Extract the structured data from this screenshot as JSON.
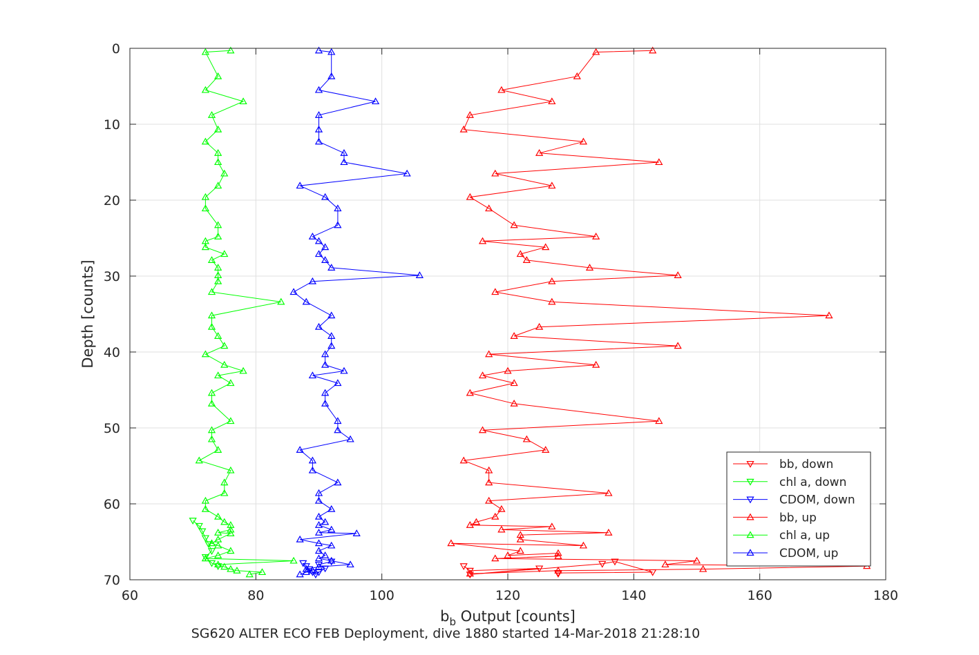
{
  "chart_data": {
    "type": "line",
    "title": "",
    "xlabel_main": "b",
    "xlabel_sub": "b",
    "xlabel_rest": " Output [counts]",
    "ylabel": "Depth [counts]",
    "footer": "SG620 ALTER ECO FEB Deployment, dive 1880 started 14-Mar-2018 21:28:10",
    "xlim": [
      60,
      180
    ],
    "ylim": [
      0,
      70
    ],
    "y_reversed": true,
    "xticks": [
      60,
      80,
      100,
      120,
      140,
      160,
      180
    ],
    "yticks": [
      0,
      10,
      20,
      30,
      40,
      50,
      60,
      70
    ],
    "grid": true,
    "legend_position": "bottom-right",
    "series": [
      {
        "name": "bb, down",
        "color": "#ff0000",
        "marker": "triangle-down",
        "x": [
          113,
          114,
          125,
          114,
          135,
          137,
          143,
          128,
          128
        ],
        "y": [
          68.2,
          68.8,
          68.5,
          69.3,
          67.9,
          67.6,
          69.0,
          69.1,
          69.2
        ]
      },
      {
        "name": "chl a, down",
        "color": "#00ff00",
        "marker": "triangle-down",
        "x": [
          70,
          71,
          71.5,
          72,
          72.5,
          73,
          72,
          73,
          74
        ],
        "y": [
          62.2,
          62.9,
          63.6,
          64.5,
          65.3,
          66.2,
          67.0,
          67.8,
          68.2
        ]
      },
      {
        "name": "CDOM, down",
        "color": "#0000ff",
        "marker": "triangle-down",
        "x": [
          87.5,
          88,
          88.5,
          89,
          89.5,
          90,
          91,
          90,
          92
        ],
        "y": [
          67.8,
          68.2,
          68.6,
          69.0,
          69.3,
          69.0,
          68.5,
          68.0,
          67.6
        ]
      },
      {
        "name": "bb, up",
        "color": "#ff0000",
        "marker": "triangle-up",
        "x": [
          143,
          134,
          131,
          119,
          127,
          114,
          113,
          132,
          125,
          144,
          118,
          127,
          114,
          117,
          121,
          134,
          116,
          126,
          122,
          123,
          133,
          147,
          127,
          118,
          127,
          171,
          125,
          121,
          147,
          117,
          134,
          120,
          116,
          121,
          114,
          121,
          144,
          116,
          123,
          126,
          113,
          117,
          117,
          136,
          117,
          119,
          118,
          115,
          114,
          127,
          119,
          136,
          122,
          122,
          132,
          111,
          122,
          120,
          128,
          128,
          118,
          150,
          145,
          177,
          151,
          128,
          114
        ],
        "y": [
          0.3,
          0.5,
          3.7,
          5.5,
          7.0,
          8.8,
          10.7,
          12.3,
          13.8,
          15.0,
          16.5,
          18.1,
          19.6,
          21.1,
          23.3,
          24.8,
          25.4,
          26.2,
          27.1,
          27.9,
          28.9,
          29.9,
          30.7,
          32.1,
          33.4,
          35.2,
          36.7,
          37.9,
          39.2,
          40.3,
          41.7,
          42.5,
          43.1,
          44.1,
          45.4,
          46.8,
          49.1,
          50.3,
          51.5,
          52.9,
          54.3,
          55.6,
          57.2,
          58.6,
          59.6,
          60.7,
          61.7,
          62.4,
          62.8,
          63.0,
          63.4,
          63.8,
          64.1,
          64.7,
          65.5,
          65.2,
          66.2,
          66.8,
          66.5,
          66.9,
          67.2,
          67.5,
          68.0,
          68.2,
          68.6,
          68.8,
          69.2
        ]
      },
      {
        "name": "chl a, up",
        "color": "#00ff00",
        "marker": "triangle-up",
        "x": [
          76,
          72,
          74,
          72,
          78,
          73,
          74,
          72,
          74,
          74,
          75,
          74,
          72,
          72,
          74,
          74,
          72,
          72,
          75,
          73,
          74,
          74,
          74,
          73,
          84,
          73,
          73,
          74,
          75,
          72,
          75,
          78,
          74,
          76,
          73,
          73,
          76,
          73,
          73,
          74,
          71,
          76,
          75,
          75,
          72,
          72,
          74,
          75,
          76,
          76,
          74,
          76,
          74,
          73,
          74,
          76,
          74,
          72,
          86,
          74,
          75,
          76,
          77,
          81,
          79
        ],
        "y": [
          0.3,
          0.5,
          3.7,
          5.5,
          7.0,
          8.8,
          10.7,
          12.3,
          13.8,
          15.0,
          16.5,
          18.1,
          19.6,
          21.1,
          23.3,
          24.8,
          25.4,
          26.2,
          27.1,
          27.9,
          28.9,
          29.9,
          30.7,
          32.1,
          33.4,
          35.2,
          36.7,
          37.9,
          39.2,
          40.3,
          41.7,
          42.5,
          43.1,
          44.1,
          45.4,
          46.8,
          49.1,
          50.3,
          51.5,
          52.9,
          54.3,
          55.6,
          57.2,
          58.6,
          59.6,
          60.7,
          61.7,
          62.4,
          62.8,
          63.4,
          63.8,
          63.9,
          64.7,
          65.2,
          65.5,
          66.2,
          66.8,
          67.2,
          67.5,
          68.0,
          68.3,
          68.6,
          68.8,
          69.0,
          69.3
        ]
      },
      {
        "name": "CDOM, up",
        "color": "#0000ff",
        "marker": "triangle-up",
        "x": [
          90,
          92,
          92,
          90,
          99,
          90,
          90,
          90,
          94,
          94,
          104,
          87,
          91,
          93,
          93,
          89,
          90,
          91,
          90,
          91,
          92,
          106,
          89,
          86,
          88,
          92,
          90,
          92,
          92,
          91,
          91,
          94,
          89,
          93,
          91,
          91,
          93,
          93,
          95,
          87,
          89,
          89,
          93,
          90,
          90,
          92,
          90,
          91,
          90,
          92,
          90,
          96,
          87,
          90,
          92,
          90,
          91,
          90,
          92,
          95,
          90,
          88,
          89,
          88,
          87
        ],
        "y": [
          0.3,
          0.5,
          3.7,
          5.5,
          7.0,
          8.8,
          10.7,
          12.3,
          13.8,
          15.0,
          16.5,
          18.1,
          19.6,
          21.1,
          23.3,
          24.8,
          25.4,
          26.2,
          27.1,
          27.9,
          28.9,
          29.9,
          30.7,
          32.1,
          33.4,
          35.2,
          36.7,
          37.9,
          39.2,
          40.3,
          41.7,
          42.5,
          43.1,
          44.1,
          45.4,
          46.8,
          49.1,
          50.3,
          51.5,
          52.9,
          54.3,
          55.6,
          57.2,
          58.6,
          59.6,
          60.7,
          61.7,
          62.4,
          62.8,
          63.4,
          63.8,
          63.9,
          64.7,
          65.2,
          65.5,
          66.2,
          66.8,
          67.2,
          67.5,
          68.0,
          68.3,
          68.6,
          68.8,
          69.0,
          69.3
        ]
      }
    ]
  }
}
